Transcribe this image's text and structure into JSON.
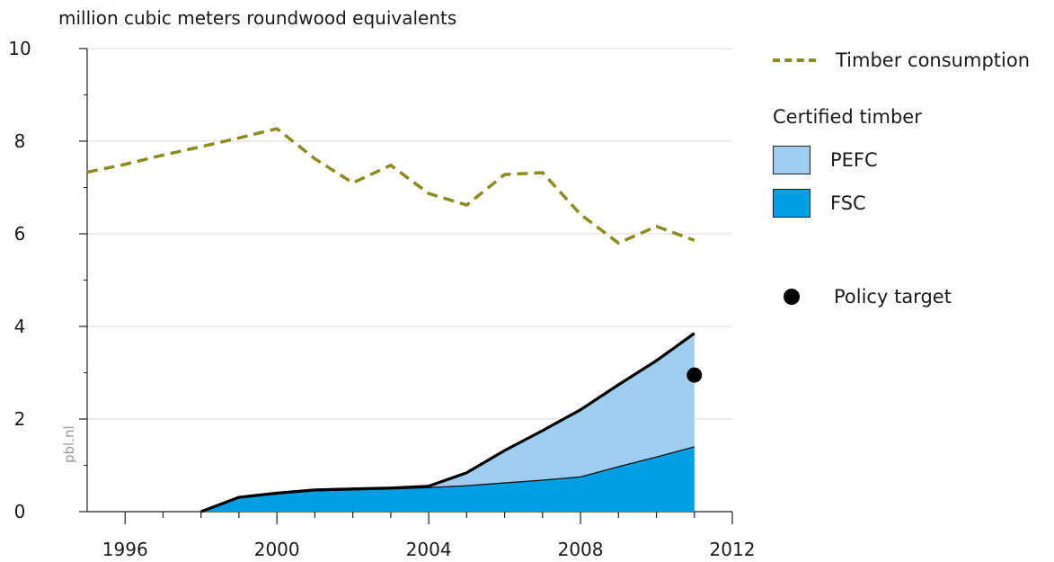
{
  "chart_data": {
    "type": "area",
    "title": "",
    "ylabel": "million cubic meters roundwood equivalents",
    "xlabel": "",
    "xlim": [
      1995,
      2012
    ],
    "ylim": [
      0,
      10
    ],
    "x_ticks": [
      1996,
      2000,
      2004,
      2008,
      2012
    ],
    "y_ticks": [
      0,
      2,
      4,
      6,
      8,
      10
    ],
    "grid": true,
    "legend_position": "right",
    "series": [
      {
        "name": "Timber consumption",
        "type": "line",
        "style": "dashed",
        "color": "#8c8c1e",
        "x": [
          1995,
          1996,
          1997,
          1998,
          1999,
          2000,
          2001,
          2002,
          2003,
          2004,
          2005,
          2006,
          2007,
          2008,
          2009,
          2010,
          2011
        ],
        "values": [
          7.33,
          7.5,
          7.7,
          7.88,
          8.07,
          8.27,
          7.62,
          7.1,
          7.48,
          6.87,
          6.62,
          7.28,
          7.32,
          6.42,
          5.8,
          6.16,
          5.86
        ]
      },
      {
        "name": "PEFC",
        "group": "Certified timber",
        "type": "area",
        "stacked": true,
        "color": "#9ecdf0",
        "x": [
          1998,
          1999,
          2000,
          2001,
          2002,
          2003,
          2004,
          2005,
          2006,
          2007,
          2008,
          2009,
          2010,
          2011
        ],
        "values": [
          0,
          0.01,
          0.02,
          0.02,
          0.02,
          0.02,
          0.03,
          0.28,
          0.7,
          1.07,
          1.45,
          1.77,
          2.08,
          2.45
        ]
      },
      {
        "name": "FSC",
        "group": "Certified timber",
        "type": "area",
        "stacked": true,
        "color": "#009fe3",
        "x": [
          1998,
          1999,
          2000,
          2001,
          2002,
          2003,
          2004,
          2005,
          2006,
          2007,
          2008,
          2009,
          2010,
          2011
        ],
        "values": [
          0,
          0.3,
          0.38,
          0.45,
          0.47,
          0.49,
          0.52,
          0.56,
          0.62,
          0.68,
          0.75,
          0.97,
          1.18,
          1.4
        ]
      },
      {
        "name": "Policy target",
        "type": "scatter",
        "color": "#000000",
        "x": [
          2011
        ],
        "values": [
          2.95
        ]
      }
    ]
  },
  "legend": {
    "consumption": "Timber consumption",
    "certified_heading": "Certified timber",
    "pefc": "PEFC",
    "fsc": "FSC",
    "target": "Policy target"
  },
  "watermark": "pbl.nl"
}
